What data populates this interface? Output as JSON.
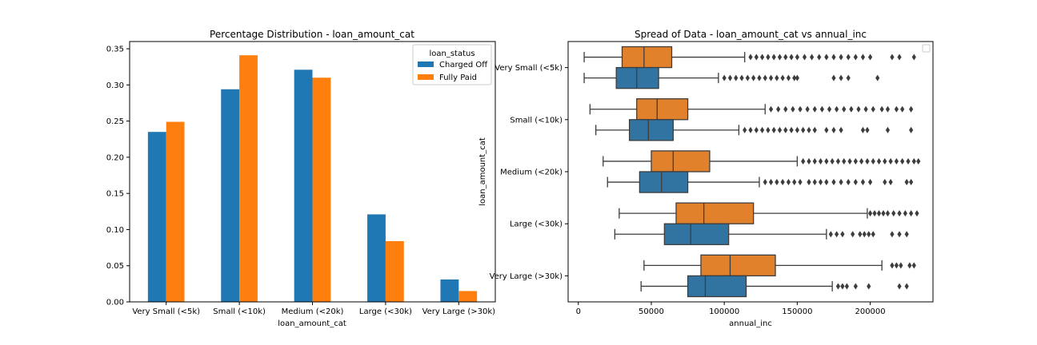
{
  "colors": {
    "charged_off": "#1f77b4",
    "fully_paid": "#ff7f0e",
    "box_charged_off": "#3274a1",
    "box_fully_paid": "#e1812c"
  },
  "chart_data": [
    {
      "type": "bar",
      "title": "Percentage Distribution - loan_amount_cat",
      "xlabel": "loan_amount_cat",
      "ylabel": "",
      "ylim": [
        0,
        0.36
      ],
      "yticks": [
        "0.00",
        "0.05",
        "0.10",
        "0.15",
        "0.20",
        "0.25",
        "0.30",
        "0.35"
      ],
      "categories": [
        "Very Small (<5k)",
        "Small (<10k)",
        "Medium (<20k)",
        "Large (<30k)",
        "Very Large (>30k)"
      ],
      "legend_title": "loan_status",
      "legend_position": "top-right",
      "series": [
        {
          "name": "Charged Off",
          "values": [
            0.235,
            0.294,
            0.321,
            0.121,
            0.031
          ]
        },
        {
          "name": "Fully Paid",
          "values": [
            0.249,
            0.341,
            0.31,
            0.084,
            0.015
          ]
        }
      ]
    },
    {
      "type": "box",
      "orientation": "horizontal",
      "title": "Spread of Data - loan_amount_cat vs annual_inc",
      "xlabel": "annual_inc",
      "ylabel": "loan_amount_cat",
      "xlim": [
        -7000,
        243000
      ],
      "xticks": [
        "0",
        "50000",
        "100000",
        "150000",
        "200000"
      ],
      "categories": [
        "Very Small (<5k)",
        "Small (<10k)",
        "Medium (<20k)",
        "Large (<30k)",
        "Very Large (>30k)"
      ],
      "groups": [
        {
          "fully_paid": {
            "whislo": 4000,
            "q1": 30000,
            "med": 45000,
            "q3": 64000,
            "whishi": 114000,
            "fliers": [
              118000,
              122000,
              126000,
              130000,
              134000,
              138000,
              142000,
              146000,
              150000,
              155000,
              160000,
              165000,
              170000,
              175000,
              180000,
              185000,
              190000,
              195000,
              200000,
              215000,
              220000,
              230000
            ]
          },
          "charged_off": {
            "whislo": 4000,
            "q1": 26000,
            "med": 40000,
            "q3": 55000,
            "whishi": 96000,
            "fliers": [
              100000,
              104000,
              108000,
              112000,
              116000,
              120000,
              124000,
              128000,
              132000,
              136000,
              140000,
              144000,
              148000,
              150000,
              175000,
              180000,
              185000,
              205000
            ]
          }
        },
        {
          "fully_paid": {
            "whislo": 8000,
            "q1": 40000,
            "med": 54000,
            "q3": 75000,
            "whishi": 128000,
            "fliers": [
              132000,
              137000,
              142000,
              147000,
              152000,
              157000,
              162000,
              167000,
              172000,
              177000,
              182000,
              187000,
              192000,
              197000,
              202000,
              208000,
              212000,
              218000,
              222000,
              228000
            ]
          },
          "charged_off": {
            "whislo": 12000,
            "q1": 35000,
            "med": 48000,
            "q3": 65000,
            "whishi": 110000,
            "fliers": [
              114000,
              118000,
              122000,
              126000,
              130000,
              134000,
              138000,
              142000,
              146000,
              150000,
              154000,
              158000,
              162000,
              170000,
              175000,
              180000,
              195000,
              198000,
              212000,
              228000
            ]
          }
        },
        {
          "fully_paid": {
            "whislo": 17000,
            "q1": 50000,
            "med": 65000,
            "q3": 90000,
            "whishi": 150000,
            "fliers": [
              154000,
              158000,
              162000,
              166000,
              170000,
              174000,
              178000,
              182000,
              186000,
              190000,
              194000,
              198000,
              202000,
              206000,
              210000,
              214000,
              218000,
              222000,
              226000,
              230000,
              233000
            ]
          },
          "charged_off": {
            "whislo": 20000,
            "q1": 42000,
            "med": 57000,
            "q3": 75000,
            "whishi": 124000,
            "fliers": [
              128000,
              132000,
              136000,
              140000,
              144000,
              148000,
              152000,
              158000,
              162000,
              166000,
              170000,
              175000,
              180000,
              185000,
              190000,
              195000,
              200000,
              210000,
              214000,
              225000,
              228000
            ]
          }
        },
        {
          "fully_paid": {
            "whislo": 28000,
            "q1": 67000,
            "med": 86000,
            "q3": 120000,
            "whishi": 198000,
            "fliers": [
              200000,
              203000,
              206000,
              209000,
              212000,
              216000,
              220000,
              224000,
              228000,
              232000
            ]
          },
          "charged_off": {
            "whislo": 25000,
            "q1": 59000,
            "med": 77000,
            "q3": 103000,
            "whishi": 170000,
            "fliers": [
              173000,
              177000,
              181000,
              188000,
              193000,
              196000,
              199000,
              202000,
              215000,
              220000,
              225000
            ]
          }
        },
        {
          "fully_paid": {
            "whislo": 45000,
            "q1": 84000,
            "med": 104000,
            "q3": 135000,
            "whishi": 208000,
            "fliers": [
              215000,
              218000,
              221000,
              227000,
              230000
            ]
          },
          "charged_off": {
            "whislo": 43000,
            "q1": 75000,
            "med": 87000,
            "q3": 115000,
            "whishi": 174000,
            "fliers": [
              178000,
              181000,
              184000,
              190000,
              199000,
              220000,
              225000
            ]
          }
        }
      ]
    }
  ]
}
